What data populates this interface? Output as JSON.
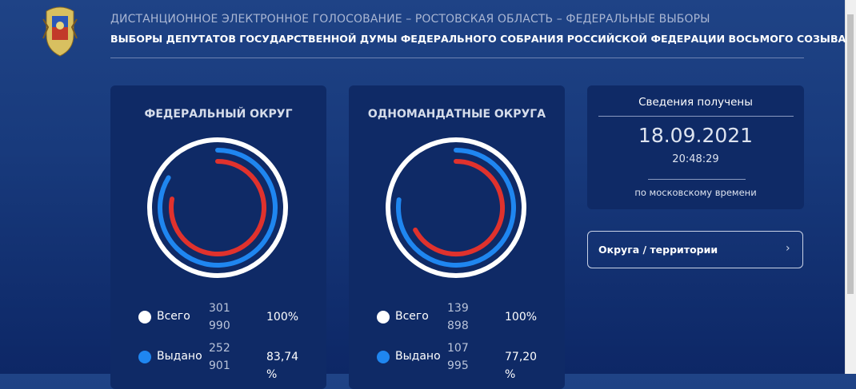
{
  "header": {
    "subtitle": "ДИСТАНЦИОННОЕ ЭЛЕКТРОННОЕ ГОЛОСОВАНИЕ – РОСТОВСКАЯ ОБЛАСТЬ – ФЕДЕРАЛЬНЫЕ ВЫБОРЫ",
    "title": "ВЫБОРЫ ДЕПУТАТОВ ГОСУДАРСТВЕННОЙ ДУМЫ ФЕДЕРАЛЬНОГО СОБРАНИЯ РОССИЙСКОЙ ФЕДЕРАЦИИ ВОСЬМОГО СОЗЫВА"
  },
  "panels": [
    {
      "title": "ФЕДЕРАЛЬНЫЙ ОКРУГ",
      "received_share": 78,
      "rows": [
        {
          "label": "Всего",
          "count": "301 990",
          "percent": {
            "value": 100,
            "label": "100%"
          }
        },
        {
          "label": "Выдано",
          "count": "252 901",
          "percent": {
            "value": 83.74,
            "label": "83,74 %"
          }
        }
      ]
    },
    {
      "title": "ОДНОМАНДАТНЫЕ ОКРУГА",
      "received_share": 67,
      "rows": [
        {
          "label": "Всего",
          "count": "139 898",
          "percent": {
            "value": 100,
            "label": "100%"
          }
        },
        {
          "label": "Выдано",
          "count": "107 995",
          "percent": {
            "value": 77.2,
            "label": "77,20%"
          }
        }
      ]
    }
  ],
  "info": {
    "heading": "Сведения получены",
    "date": "18.09.2021",
    "time": "20:48:29",
    "note": "по московскому времени"
  },
  "link": {
    "label": "Округа / территории"
  }
}
